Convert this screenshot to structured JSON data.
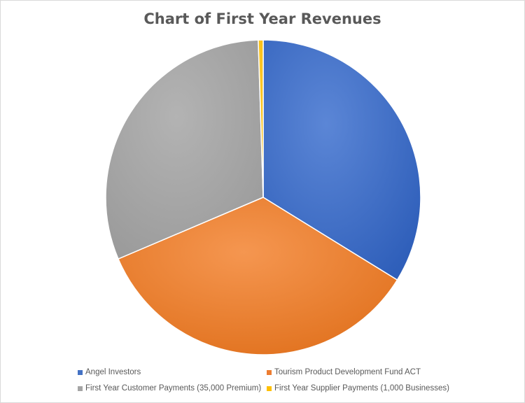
{
  "chart_data": {
    "type": "pie",
    "title": "Chart of First Year Revenues",
    "categories": [
      "Angel Investors",
      "Tourism Product Development Fund ACT",
      "First Year Customer Payments (35,000 Premium)",
      "First Year Supplier Payments (1,000 Businesses)"
    ],
    "values": [
      33.8,
      34.8,
      30.9,
      0.5
    ],
    "colors": [
      "#4472C4",
      "#ED7D31",
      "#A5A5A5",
      "#FFC000"
    ],
    "legend": "bottom",
    "start_angle_deg": 0,
    "direction": "clockwise"
  }
}
